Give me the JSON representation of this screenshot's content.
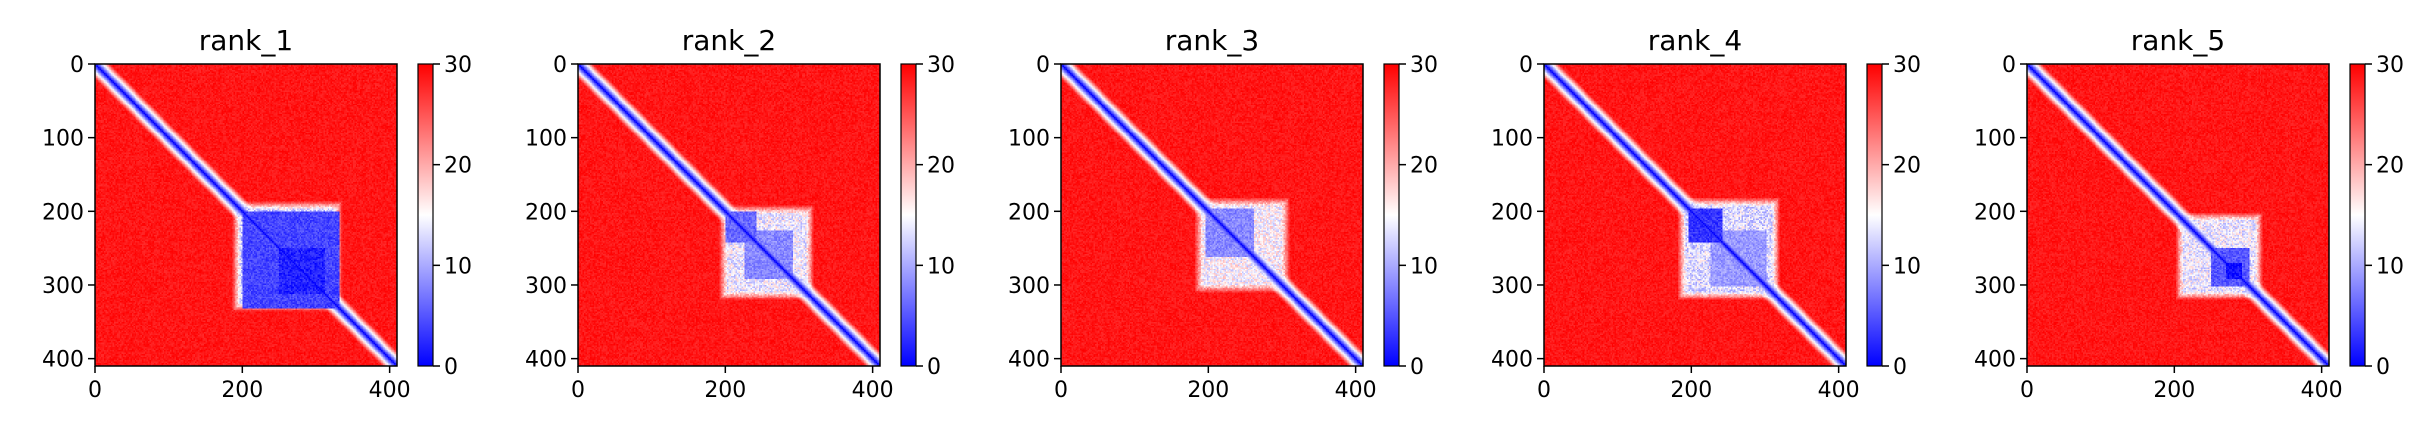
{
  "chart_data": [
    {
      "type": "heatmap",
      "title": "rank_1",
      "x_ticks": [
        0,
        200,
        400
      ],
      "y_ticks": [
        0,
        100,
        200,
        300,
        400
      ],
      "xlim": [
        0,
        410
      ],
      "ylim": [
        410,
        0
      ],
      "colorbar": {
        "range": [
          0,
          30
        ],
        "ticks": [
          0,
          10,
          20,
          30
        ],
        "colormap": "bwr"
      },
      "n_residues": 410,
      "diagonal_value": 0,
      "background_value": 30,
      "features": [
        {
          "kind": "block",
          "range": [
            200,
            330
          ],
          "value": 4
        },
        {
          "kind": "halo",
          "range": [
            185,
            335
          ],
          "value": 12
        },
        {
          "kind": "block",
          "range": [
            250,
            310
          ],
          "value": 2
        }
      ]
    },
    {
      "type": "heatmap",
      "title": "rank_2",
      "x_ticks": [
        0,
        200,
        400
      ],
      "y_ticks": [
        0,
        100,
        200,
        300,
        400
      ],
      "xlim": [
        0,
        410
      ],
      "ylim": [
        410,
        0
      ],
      "colorbar": {
        "range": [
          0,
          30
        ],
        "ticks": [
          0,
          10,
          20,
          30
        ],
        "colormap": "bwr"
      },
      "n_residues": 410,
      "diagonal_value": 0,
      "background_value": 30,
      "features": [
        {
          "kind": "halo",
          "range": [
            190,
            320
          ],
          "value": 14
        },
        {
          "kind": "block",
          "range": [
            200,
            240
          ],
          "value": 6
        },
        {
          "kind": "block",
          "range": [
            225,
            290
          ],
          "value": 8
        }
      ]
    },
    {
      "type": "heatmap",
      "title": "rank_3",
      "x_ticks": [
        0,
        200,
        400
      ],
      "y_ticks": [
        0,
        100,
        200,
        300,
        400
      ],
      "xlim": [
        0,
        410
      ],
      "ylim": [
        410,
        0
      ],
      "colorbar": {
        "range": [
          0,
          30
        ],
        "ticks": [
          0,
          10,
          20,
          30
        ],
        "colormap": "bwr"
      },
      "n_residues": 410,
      "diagonal_value": 0,
      "background_value": 30,
      "features": [
        {
          "kind": "halo",
          "range": [
            180,
            310
          ],
          "value": 15
        },
        {
          "kind": "block",
          "range": [
            195,
            260
          ],
          "value": 8
        }
      ]
    },
    {
      "type": "heatmap",
      "title": "rank_4",
      "x_ticks": [
        0,
        200,
        400
      ],
      "y_ticks": [
        0,
        100,
        200,
        300,
        400
      ],
      "xlim": [
        0,
        410
      ],
      "ylim": [
        410,
        0
      ],
      "colorbar": {
        "range": [
          0,
          30
        ],
        "ticks": [
          0,
          10,
          20,
          30
        ],
        "colormap": "bwr"
      },
      "n_residues": 410,
      "diagonal_value": 0,
      "background_value": 30,
      "features": [
        {
          "kind": "halo",
          "range": [
            180,
            320
          ],
          "value": 13
        },
        {
          "kind": "block",
          "range": [
            195,
            240
          ],
          "value": 3
        },
        {
          "kind": "block",
          "range": [
            225,
            300
          ],
          "value": 9
        }
      ]
    },
    {
      "type": "heatmap",
      "title": "rank_5",
      "x_ticks": [
        0,
        200,
        400
      ],
      "y_ticks": [
        0,
        100,
        200,
        300,
        400
      ],
      "xlim": [
        0,
        410
      ],
      "ylim": [
        410,
        0
      ],
      "colorbar": {
        "range": [
          0,
          30
        ],
        "ticks": [
          0,
          10,
          20,
          30
        ],
        "colormap": "bwr"
      },
      "n_residues": 410,
      "diagonal_value": 0,
      "background_value": 30,
      "features": [
        {
          "kind": "halo",
          "range": [
            200,
            320
          ],
          "value": 14
        },
        {
          "kind": "block",
          "range": [
            250,
            300
          ],
          "value": 5
        },
        {
          "kind": "block",
          "range": [
            270,
            290
          ],
          "value": 1
        }
      ]
    }
  ],
  "colors": {
    "low": "#0000ff",
    "mid": "#ffffff",
    "high": "#ff0000",
    "axis": "#000000"
  }
}
